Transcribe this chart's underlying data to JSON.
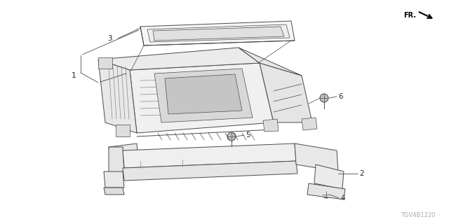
{
  "title": "",
  "diagram_code": "TGV4B1220",
  "fr_label": "FR.",
  "background_color": "#ffffff",
  "line_color": "#4a4a4a",
  "light_line_color": "#888888",
  "text_color": "#222222",
  "figsize": [
    6.4,
    3.2
  ],
  "dpi": 100
}
